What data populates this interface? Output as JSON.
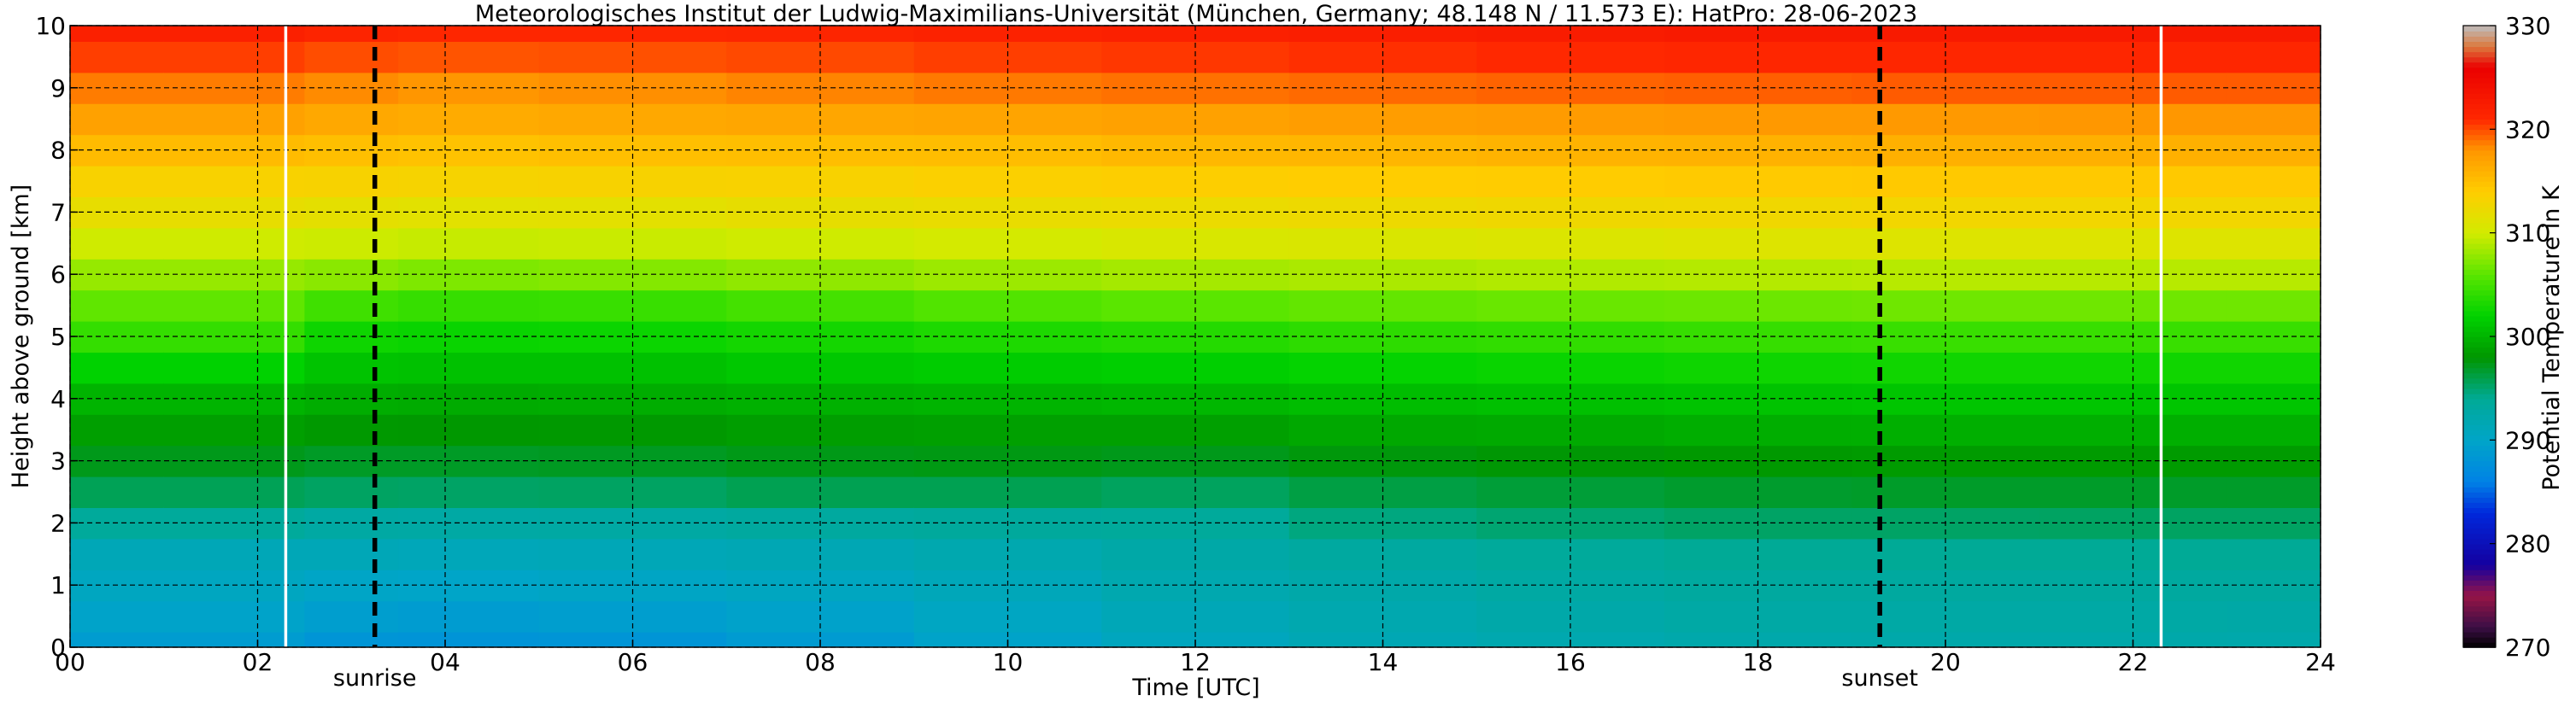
{
  "chart_data": {
    "type": "heatmap",
    "title": "Meteorologisches Institut der Ludwig-Maximilians-Universität (München, Germany; 48.148 N / 11.573 E):    HatPro: 28-06-2023",
    "xlabel": "Time [UTC]",
    "ylabel": "Height above ground [km]",
    "xlim": [
      0,
      24
    ],
    "ylim": [
      0,
      10
    ],
    "xtick_labels": [
      "00",
      "02",
      "04",
      "06",
      "08",
      "10",
      "12",
      "14",
      "16",
      "18",
      "20",
      "22",
      "24"
    ],
    "ytick_labels": [
      "0",
      "1",
      "2",
      "3",
      "4",
      "5",
      "6",
      "7",
      "8",
      "9",
      "10"
    ],
    "grid": true,
    "events": [
      {
        "label": "sunrise",
        "time": 3.25
      },
      {
        "label": "sunset",
        "time": 19.3
      }
    ],
    "white_lines": [
      2.3,
      22.3
    ],
    "colorbar": {
      "label": "Potential Temperature in K",
      "range": [
        270,
        330
      ],
      "tick_labels": [
        "270",
        "280",
        "290",
        "300",
        "310",
        "320",
        "330"
      ]
    },
    "time_hours": [
      0,
      2,
      3,
      4,
      6,
      8,
      10,
      12,
      14,
      16,
      18,
      20,
      22,
      24
    ],
    "height_km": [
      0,
      0.5,
      1,
      1.5,
      2,
      2.5,
      3,
      3.5,
      4,
      4.5,
      5,
      5.5,
      6,
      6.5,
      7,
      7.5,
      8,
      8.5,
      9,
      9.5,
      10
    ],
    "theta_K_by_time": [
      [
        289.0,
        289.8,
        290.6,
        291.4,
        293.6,
        295.7,
        297.3,
        298.6,
        300.0,
        302.0,
        304.3,
        306.2,
        308.0,
        309.9,
        311.9,
        313.4,
        315.3,
        317.2,
        318.7,
        320.4,
        322.0
      ],
      [
        289.0,
        289.8,
        290.6,
        291.4,
        293.6,
        295.7,
        297.3,
        298.6,
        300.0,
        302.0,
        304.3,
        306.2,
        308.0,
        309.9,
        311.9,
        313.4,
        315.3,
        317.2,
        318.7,
        320.4,
        322.0
      ],
      [
        288.2,
        289.2,
        290.2,
        291.4,
        293.0,
        295.4,
        297.0,
        298.2,
        299.5,
        301.0,
        302.6,
        304.8,
        307.6,
        309.8,
        311.6,
        313.3,
        315.0,
        316.7,
        318.3,
        320.0,
        321.5
      ],
      [
        288.0,
        289.0,
        290.0,
        291.2,
        292.9,
        295.3,
        297.0,
        298.1,
        299.4,
        300.9,
        302.4,
        304.4,
        307.2,
        309.6,
        311.4,
        313.2,
        314.8,
        316.5,
        318.0,
        319.8,
        321.2
      ],
      [
        288.2,
        289.2,
        290.3,
        291.4,
        293.0,
        295.4,
        297.1,
        298.2,
        299.5,
        300.9,
        302.5,
        304.5,
        307.4,
        309.7,
        311.5,
        313.3,
        315.0,
        316.7,
        318.2,
        319.9,
        321.2
      ],
      [
        288.8,
        289.7,
        290.6,
        291.6,
        293.3,
        295.8,
        297.4,
        298.5,
        299.8,
        301.3,
        302.9,
        305.0,
        307.8,
        309.9,
        311.8,
        313.4,
        315.1,
        316.8,
        318.5,
        320.1,
        321.4
      ],
      [
        289.8,
        290.5,
        291.2,
        292.0,
        293.5,
        295.8,
        297.5,
        298.7,
        300.0,
        301.6,
        303.3,
        305.6,
        308.2,
        310.2,
        312.0,
        313.6,
        315.2,
        317.0,
        318.8,
        320.4,
        321.7
      ],
      [
        290.8,
        291.4,
        292.0,
        292.6,
        293.6,
        295.5,
        297.3,
        298.7,
        300.2,
        301.8,
        303.6,
        306.0,
        308.5,
        310.5,
        312.2,
        313.8,
        315.5,
        317.2,
        319.0,
        320.6,
        322.0
      ],
      [
        291.6,
        292.0,
        292.5,
        293.2,
        294.6,
        296.2,
        297.7,
        299.2,
        300.6,
        302.2,
        304.0,
        306.3,
        308.7,
        310.6,
        312.4,
        314.0,
        315.7,
        317.5,
        319.2,
        320.8,
        322.3
      ],
      [
        292.0,
        292.5,
        293.0,
        293.6,
        295.0,
        296.5,
        297.9,
        299.3,
        300.8,
        302.4,
        304.2,
        306.5,
        308.9,
        310.8,
        312.6,
        314.1,
        315.9,
        317.6,
        319.4,
        321.0,
        322.5
      ],
      [
        292.3,
        292.8,
        293.3,
        294.0,
        295.3,
        296.8,
        298.2,
        299.6,
        301.0,
        302.6,
        304.4,
        306.6,
        309.0,
        311.0,
        312.7,
        314.2,
        316.0,
        317.8,
        319.5,
        321.2,
        322.7
      ],
      [
        292.4,
        292.8,
        293.3,
        294.0,
        295.3,
        296.9,
        298.3,
        299.7,
        301.1,
        302.7,
        304.5,
        306.7,
        309.1,
        311.0,
        312.8,
        314.3,
        316.1,
        317.8,
        319.6,
        321.3,
        322.8
      ],
      [
        292.4,
        292.8,
        293.3,
        294.0,
        295.4,
        296.9,
        298.3,
        299.7,
        301.1,
        302.7,
        304.5,
        306.7,
        309.1,
        311.0,
        312.8,
        314.3,
        316.1,
        317.9,
        319.6,
        321.3,
        322.8
      ],
      [
        292.3,
        292.7,
        293.3,
        294.0,
        295.4,
        296.9,
        298.3,
        299.7,
        301.1,
        302.7,
        304.5,
        306.7,
        309.1,
        311.0,
        312.8,
        314.3,
        316.1,
        317.9,
        319.6,
        321.3,
        322.8
      ]
    ]
  }
}
